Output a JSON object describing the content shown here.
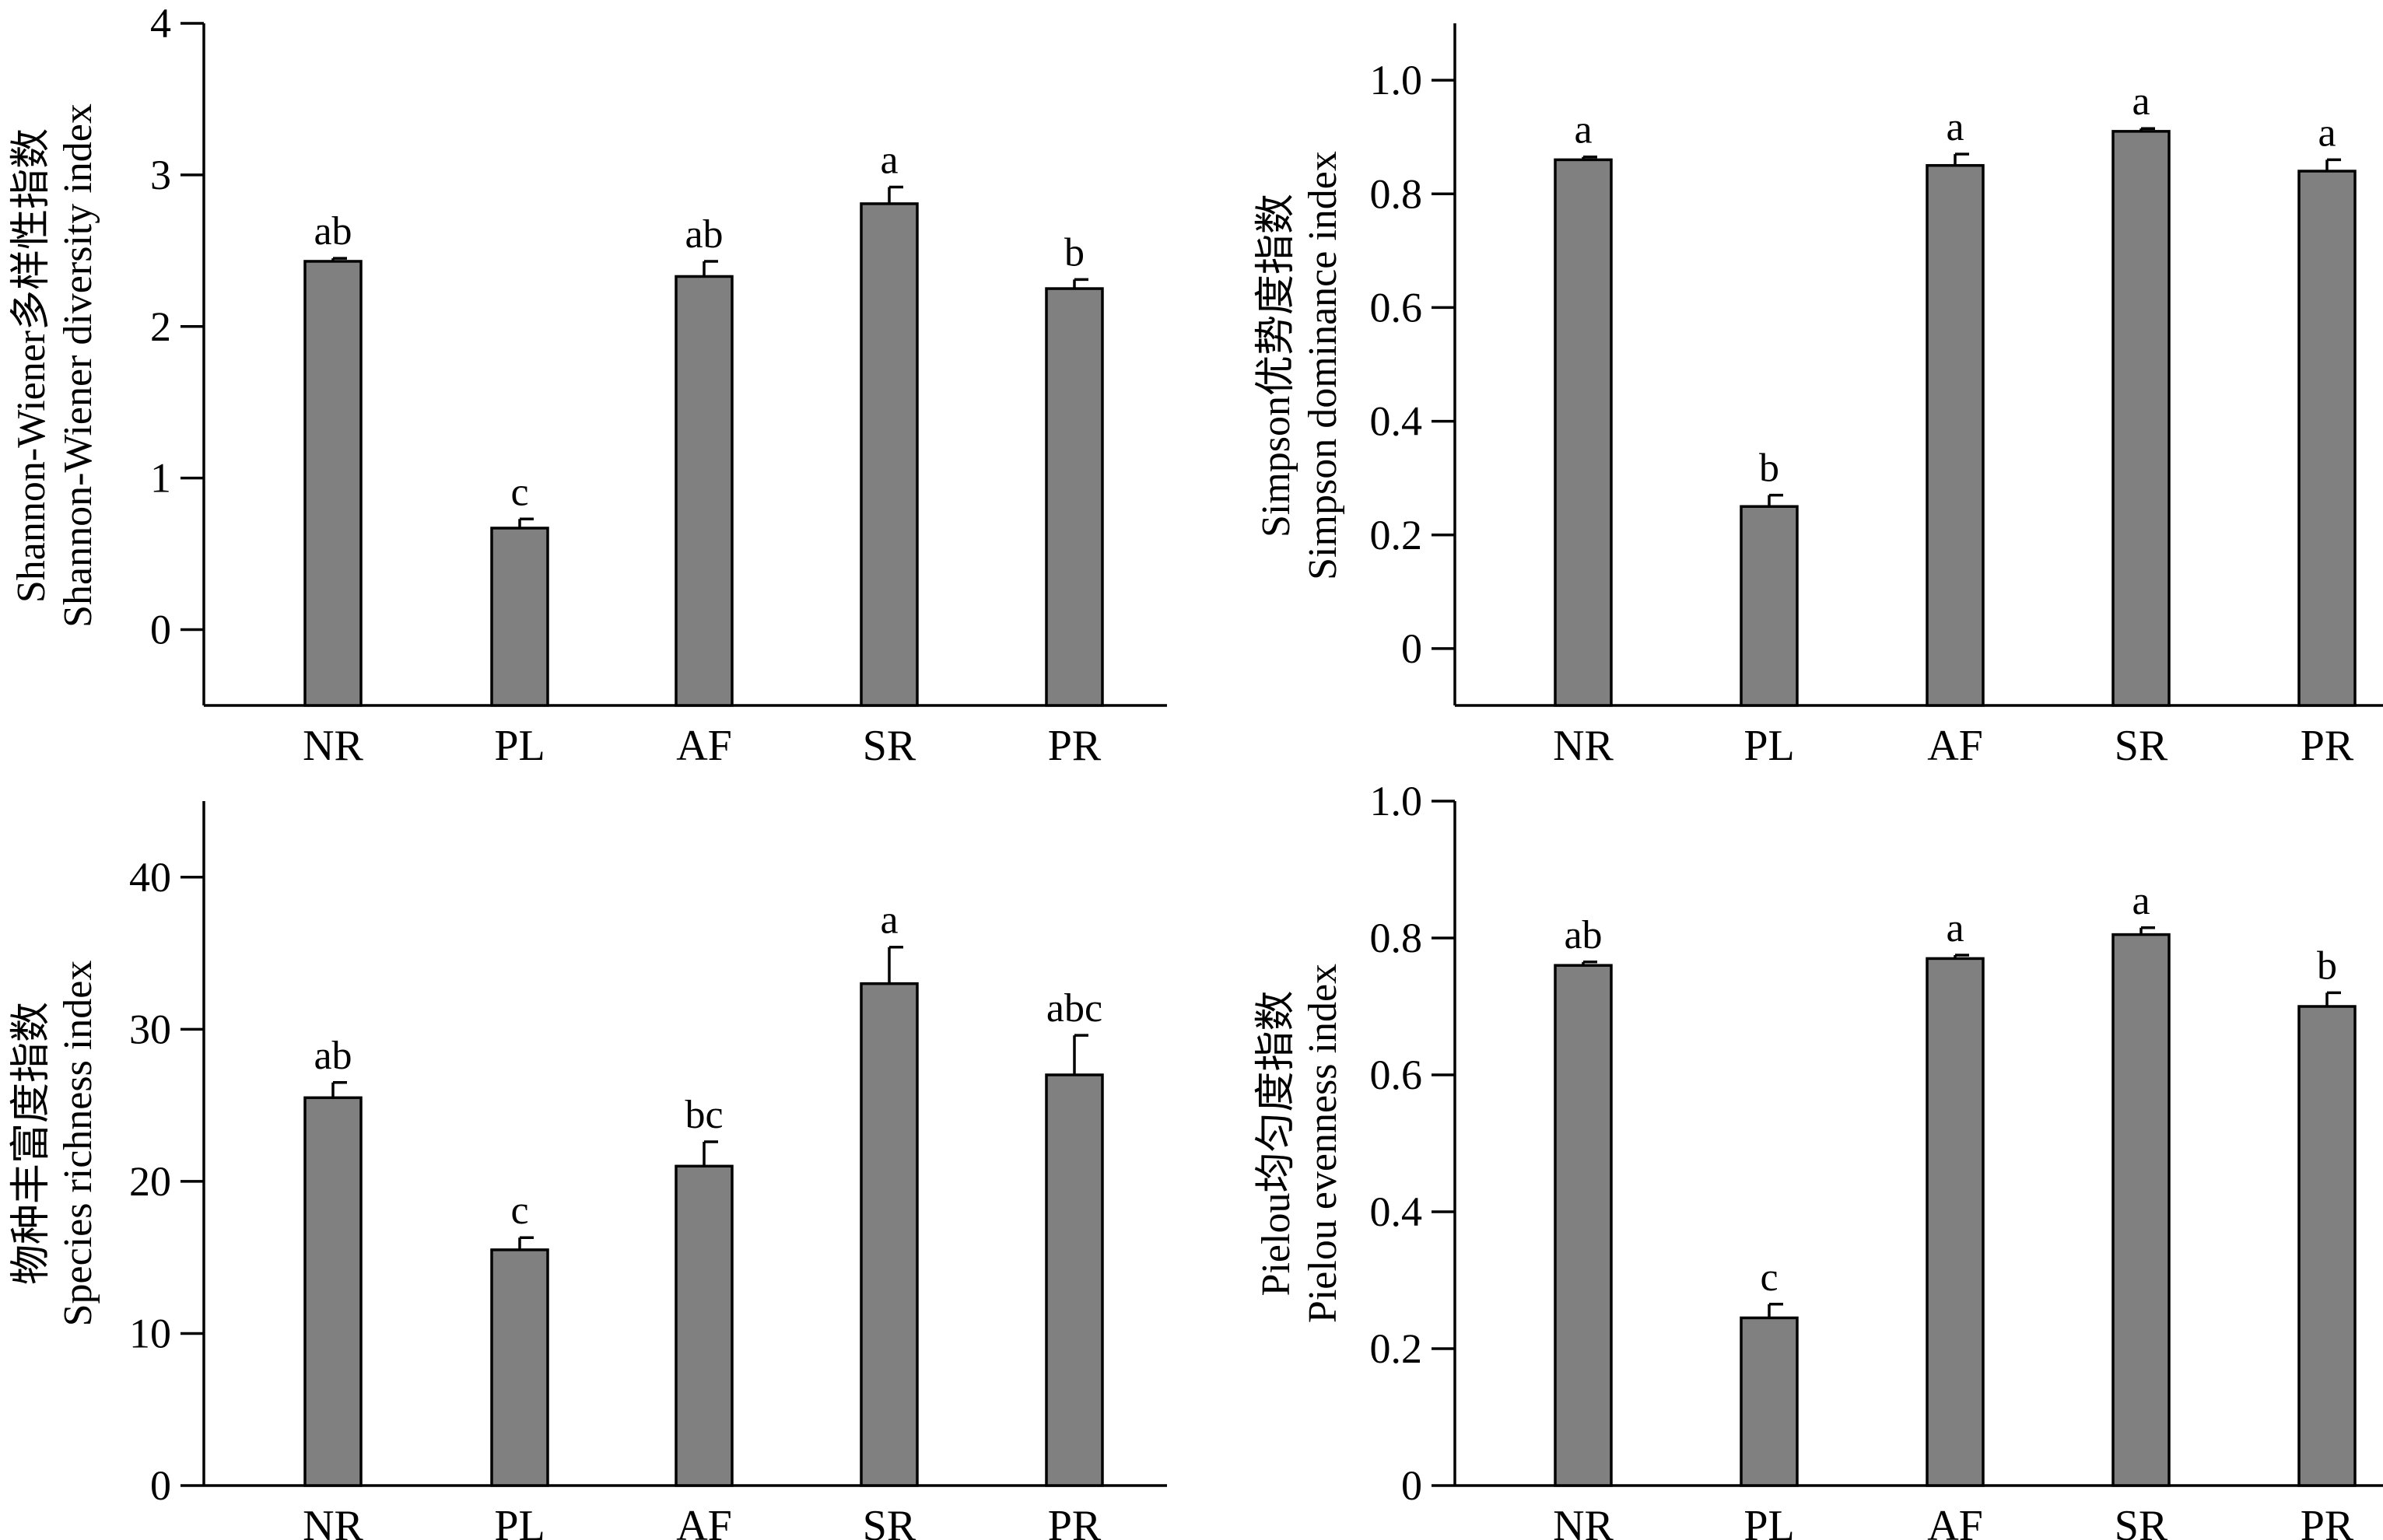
{
  "chart_data": [
    {
      "id": "shannon",
      "type": "bar",
      "ylabel_cn": "Shannon-Wiener多样性指数",
      "ylabel_en": "Shannon-Wiener diversity index",
      "categories": [
        "NR",
        "PL",
        "AF",
        "SR",
        "PR"
      ],
      "values": [
        2.43,
        0.67,
        2.33,
        2.81,
        2.25
      ],
      "errors": [
        0.02,
        0.06,
        0.1,
        0.11,
        0.06
      ],
      "letters": [
        "ab",
        "c",
        "ab",
        "a",
        "b"
      ],
      "ylim": [
        -0.5,
        4
      ],
      "yticks": [
        0,
        1,
        2,
        3,
        4
      ],
      "ytick_labels": [
        "0",
        "1",
        "2",
        "3",
        "4"
      ]
    },
    {
      "id": "simpson",
      "type": "bar",
      "ylabel_cn": "Simpson优势度指数",
      "ylabel_en": "Simpson dominance index",
      "categories": [
        "NR",
        "PL",
        "AF",
        "SR",
        "PR"
      ],
      "values": [
        0.86,
        0.25,
        0.85,
        0.91,
        0.84
      ],
      "errors": [
        0.005,
        0.02,
        0.02,
        0.005,
        0.02
      ],
      "letters": [
        "a",
        "b",
        "a",
        "a",
        "a"
      ],
      "ylim": [
        -0.1,
        1.1
      ],
      "yticks": [
        0,
        0.2,
        0.4,
        0.6,
        0.8,
        1.0
      ],
      "ytick_labels": [
        "0",
        "0.2",
        "0.4",
        "0.6",
        "0.8",
        "1.0"
      ]
    },
    {
      "id": "richness",
      "type": "bar",
      "ylabel_cn": "物种丰富度指数",
      "ylabel_en": "Species richness index",
      "categories": [
        "NR",
        "PL",
        "AF",
        "SR",
        "PR"
      ],
      "values": [
        25.5,
        15.5,
        21.0,
        33.0,
        27.0
      ],
      "errors": [
        1.0,
        0.8,
        1.6,
        2.4,
        2.6
      ],
      "letters": [
        "ab",
        "c",
        "bc",
        "a",
        "abc"
      ],
      "ylim": [
        0,
        45
      ],
      "yticks": [
        0,
        10,
        20,
        30,
        40
      ],
      "ytick_labels": [
        "0",
        "10",
        "20",
        "30",
        "40"
      ]
    },
    {
      "id": "pielou",
      "type": "bar",
      "ylabel_cn": "Pielou均匀度指数",
      "ylabel_en": "Pielou evenness index",
      "categories": [
        "NR",
        "PL",
        "AF",
        "SR",
        "PR"
      ],
      "values": [
        0.76,
        0.245,
        0.77,
        0.805,
        0.7
      ],
      "errors": [
        0.005,
        0.02,
        0.005,
        0.01,
        0.02
      ],
      "letters": [
        "ab",
        "c",
        "a",
        "a",
        "b"
      ],
      "ylim": [
        0,
        1.0
      ],
      "yticks": [
        0,
        0.2,
        0.4,
        0.6,
        0.8,
        1.0
      ],
      "ytick_labels": [
        "0",
        "0.2",
        "0.4",
        "0.6",
        "0.8",
        "1.0"
      ]
    }
  ]
}
